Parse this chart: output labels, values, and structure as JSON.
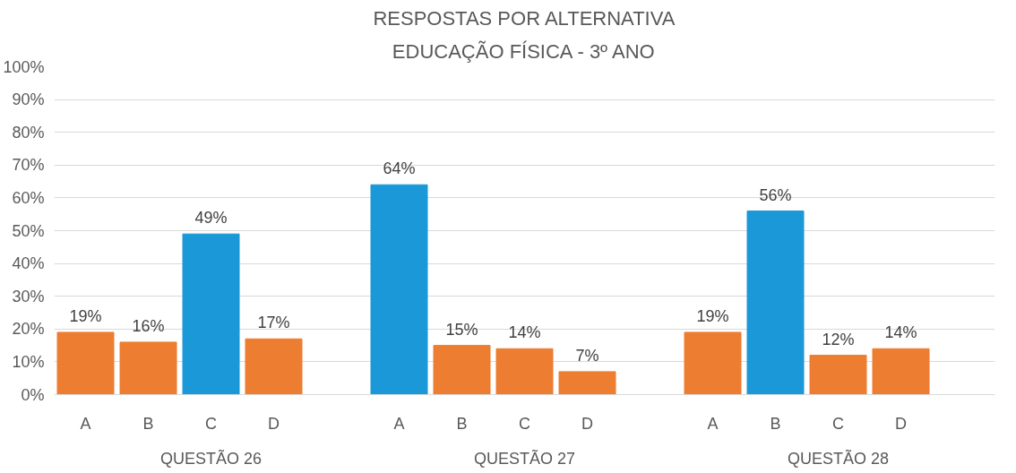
{
  "chart_data": {
    "type": "bar",
    "title": "RESPOSTAS POR ALTERNATIVA",
    "subtitle": "EDUCAÇÃO FÍSICA - 3º ANO",
    "categories": [
      "A",
      "B",
      "C",
      "D",
      null,
      "A",
      "B",
      "C",
      "D",
      null,
      "A",
      "B",
      "C",
      "D",
      null
    ],
    "values": [
      19,
      16,
      49,
      17,
      null,
      64,
      15,
      14,
      7,
      null,
      19,
      56,
      12,
      14,
      null
    ],
    "colors": [
      "#ed7d31",
      "#ed7d31",
      "#1b98d8",
      "#ed7d31",
      null,
      "#1b98d8",
      "#ed7d31",
      "#ed7d31",
      "#ed7d31",
      null,
      "#ed7d31",
      "#1b98d8",
      "#ed7d31",
      "#ed7d31",
      null
    ],
    "value_labels": [
      "19%",
      "16%",
      "49%",
      "17%",
      null,
      "64%",
      "15%",
      "14%",
      "7%",
      null,
      "19%",
      "56%",
      "12%",
      "14%",
      null
    ],
    "annotations": [
      "QUESTÃO 26",
      "QUESTÃO 27",
      "QUESTÃO 28"
    ],
    "ylim": [
      0,
      100
    ],
    "yticks": [
      {
        "value": 0,
        "label": "0%"
      },
      {
        "value": 10,
        "label": "10%"
      },
      {
        "value": 20,
        "label": "20%"
      },
      {
        "value": 30,
        "label": "30%"
      },
      {
        "value": 40,
        "label": "40%"
      },
      {
        "value": 50,
        "label": "50%"
      },
      {
        "value": 60,
        "label": "60%"
      },
      {
        "value": 70,
        "label": "70%"
      },
      {
        "value": 80,
        "label": "80%"
      },
      {
        "value": 90,
        "label": "90%"
      },
      {
        "value": 100,
        "label": "100%"
      }
    ],
    "grid": "y"
  }
}
